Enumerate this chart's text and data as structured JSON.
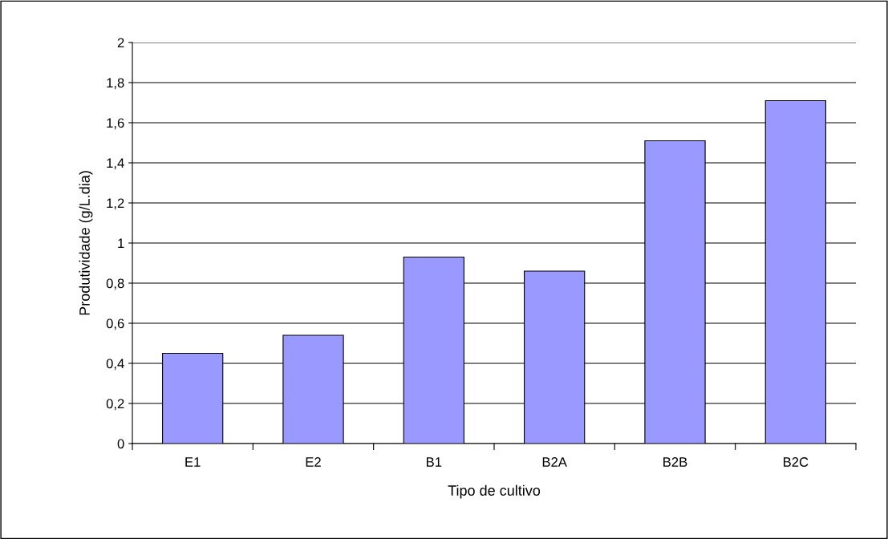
{
  "chart_data": {
    "type": "bar",
    "xlabel": "Tipo de cultivo",
    "ylabel": "Produtividade (g/L.dia)",
    "categories": [
      "E1",
      "E2",
      "B1",
      "B2A",
      "B2B",
      "B2C"
    ],
    "values": [
      0.45,
      0.54,
      0.93,
      0.86,
      1.51,
      1.71
    ],
    "color": "#9999ff",
    "ylim": [
      0,
      2
    ],
    "yticks": [
      0,
      {
        "value": 0.2,
        "label": "0,2"
      },
      {
        "value": 0.4,
        "label": "0,4"
      },
      {
        "value": 0.6,
        "label": "0,6"
      },
      {
        "value": 0.8,
        "label": "0,8"
      },
      1,
      {
        "value": 1.2,
        "label": "1,2"
      },
      {
        "value": 1.4,
        "label": "1,4"
      },
      {
        "value": 1.6,
        "label": "1,6"
      },
      {
        "value": 1.8,
        "label": "1,8"
      },
      2
    ],
    "grid": "y"
  }
}
